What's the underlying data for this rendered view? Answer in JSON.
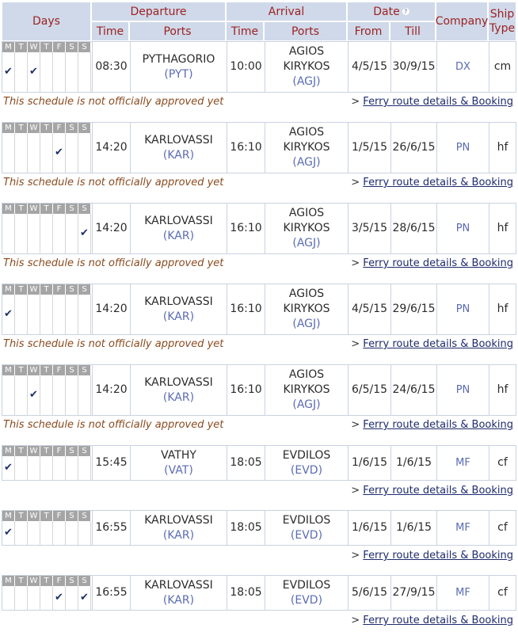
{
  "header": {
    "days": "Days",
    "departure": "Departure",
    "arrival": "Arrival",
    "date": "Date",
    "date_help_icon": "?",
    "company": "Company",
    "ship_type": "Ship Type",
    "time": "Time",
    "ports": "Ports",
    "from": "From",
    "till": "Till"
  },
  "day_letters": [
    "M",
    "T",
    "W",
    "T",
    "F",
    "S",
    "S"
  ],
  "check_mark": "✔",
  "link_prefix": ">",
  "routes": [
    {
      "days": [
        true,
        false,
        true,
        false,
        false,
        false,
        false
      ],
      "dep_time": "08:30",
      "dep_port": "PYTHAGORIO",
      "dep_code": "(PYT)",
      "arr_time": "10:00",
      "arr_port_lines": [
        "AGIOS",
        "KIRYKOS"
      ],
      "arr_code": "(AGJ)",
      "from": "4/5/15",
      "till": "30/9/15",
      "company": "DX",
      "ship": "cm",
      "note": "This schedule is not officially approved yet",
      "link": "Ferry route details & Booking"
    },
    {
      "days": [
        false,
        false,
        false,
        false,
        true,
        false,
        false
      ],
      "dep_time": "14:20",
      "dep_port": "KARLOVASSI",
      "dep_code": "(KAR)",
      "arr_time": "16:10",
      "arr_port_lines": [
        "AGIOS",
        "KIRYKOS"
      ],
      "arr_code": "(AGJ)",
      "from": "1/5/15",
      "till": "26/6/15",
      "company": "PN",
      "ship": "hf",
      "note": "This schedule is not officially approved yet",
      "link": "Ferry route details & Booking"
    },
    {
      "days": [
        false,
        false,
        false,
        false,
        false,
        false,
        true
      ],
      "dep_time": "14:20",
      "dep_port": "KARLOVASSI",
      "dep_code": "(KAR)",
      "arr_time": "16:10",
      "arr_port_lines": [
        "AGIOS",
        "KIRYKOS"
      ],
      "arr_code": "(AGJ)",
      "from": "3/5/15",
      "till": "28/6/15",
      "company": "PN",
      "ship": "hf",
      "note": "This schedule is not officially approved yet",
      "link": "Ferry route details & Booking"
    },
    {
      "days": [
        true,
        false,
        false,
        false,
        false,
        false,
        false
      ],
      "dep_time": "14:20",
      "dep_port": "KARLOVASSI",
      "dep_code": "(KAR)",
      "arr_time": "16:10",
      "arr_port_lines": [
        "AGIOS",
        "KIRYKOS"
      ],
      "arr_code": "(AGJ)",
      "from": "4/5/15",
      "till": "29/6/15",
      "company": "PN",
      "ship": "hf",
      "note": "This schedule is not officially approved yet",
      "link": "Ferry route details & Booking"
    },
    {
      "days": [
        false,
        false,
        true,
        false,
        false,
        false,
        false
      ],
      "dep_time": "14:20",
      "dep_port": "KARLOVASSI",
      "dep_code": "(KAR)",
      "arr_time": "16:10",
      "arr_port_lines": [
        "AGIOS",
        "KIRYKOS"
      ],
      "arr_code": "(AGJ)",
      "from": "6/5/15",
      "till": "24/6/15",
      "company": "PN",
      "ship": "hf",
      "note": "This schedule is not officially approved yet",
      "link": "Ferry route details & Booking"
    },
    {
      "days": [
        true,
        false,
        false,
        false,
        false,
        false,
        false
      ],
      "dep_time": "15:45",
      "dep_port": "VATHY",
      "dep_code": "(VAT)",
      "arr_time": "18:05",
      "arr_port_lines": [
        "EVDILOS"
      ],
      "arr_code": "(EVD)",
      "from": "1/6/15",
      "till": "1/6/15",
      "company": "MF",
      "ship": "cf",
      "note": "",
      "link": "Ferry route details & Booking"
    },
    {
      "days": [
        true,
        false,
        false,
        false,
        false,
        false,
        false
      ],
      "dep_time": "16:55",
      "dep_port": "KARLOVASSI",
      "dep_code": "(KAR)",
      "arr_time": "18:05",
      "arr_port_lines": [
        "EVDILOS"
      ],
      "arr_code": "(EVD)",
      "from": "1/6/15",
      "till": "1/6/15",
      "company": "MF",
      "ship": "cf",
      "note": "",
      "link": "Ferry route details & Booking"
    },
    {
      "days": [
        false,
        false,
        false,
        false,
        true,
        false,
        true
      ],
      "dep_time": "16:55",
      "dep_port": "KARLOVASSI",
      "dep_code": "(KAR)",
      "arr_time": "18:05",
      "arr_port_lines": [
        "EVDILOS"
      ],
      "arr_code": "(EVD)",
      "from": "5/6/15",
      "till": "27/9/15",
      "company": "MF",
      "ship": "cf",
      "note": "",
      "link": "Ferry route details & Booking"
    }
  ]
}
